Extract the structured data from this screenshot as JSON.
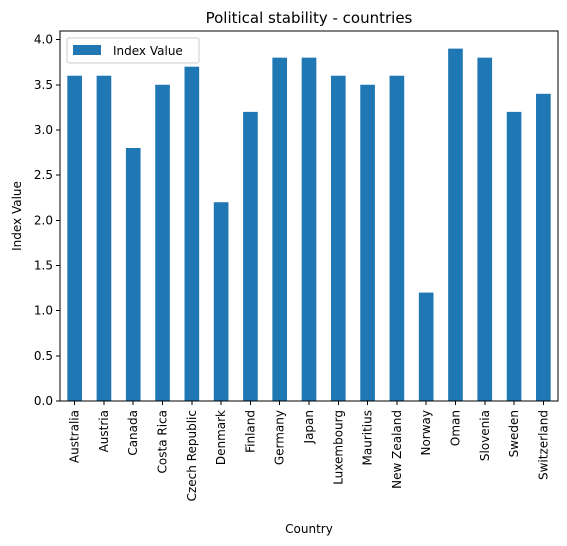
{
  "chart_data": {
    "type": "bar",
    "title": "Political stability - countries",
    "xlabel": "Country",
    "ylabel": "Index Value",
    "categories": [
      "Australia",
      "Austria",
      "Canada",
      "Costa Rica",
      "Czech Republic",
      "Denmark",
      "Finland",
      "Germany",
      "Japan",
      "Luxembourg",
      "Mauritius",
      "New Zealand",
      "Norway",
      "Oman",
      "Slovenia",
      "Sweden",
      "Switzerland"
    ],
    "series": [
      {
        "name": "Index Value",
        "values": [
          3.6,
          3.6,
          2.8,
          3.5,
          3.7,
          2.2,
          3.2,
          3.8,
          3.8,
          3.6,
          3.5,
          3.6,
          1.2,
          3.9,
          3.8,
          3.2,
          3.4
        ]
      }
    ],
    "ylim": [
      0,
      4.095
    ],
    "yticks": [
      0.0,
      0.5,
      1.0,
      1.5,
      2.0,
      2.5,
      3.0,
      3.5,
      4.0
    ],
    "ytick_labels": [
      "0.0",
      "0.5",
      "1.0",
      "1.5",
      "2.0",
      "2.5",
      "3.0",
      "3.5",
      "4.0"
    ],
    "grid": false,
    "legend_position": "top-left",
    "bar_color": "#1f77b4"
  }
}
